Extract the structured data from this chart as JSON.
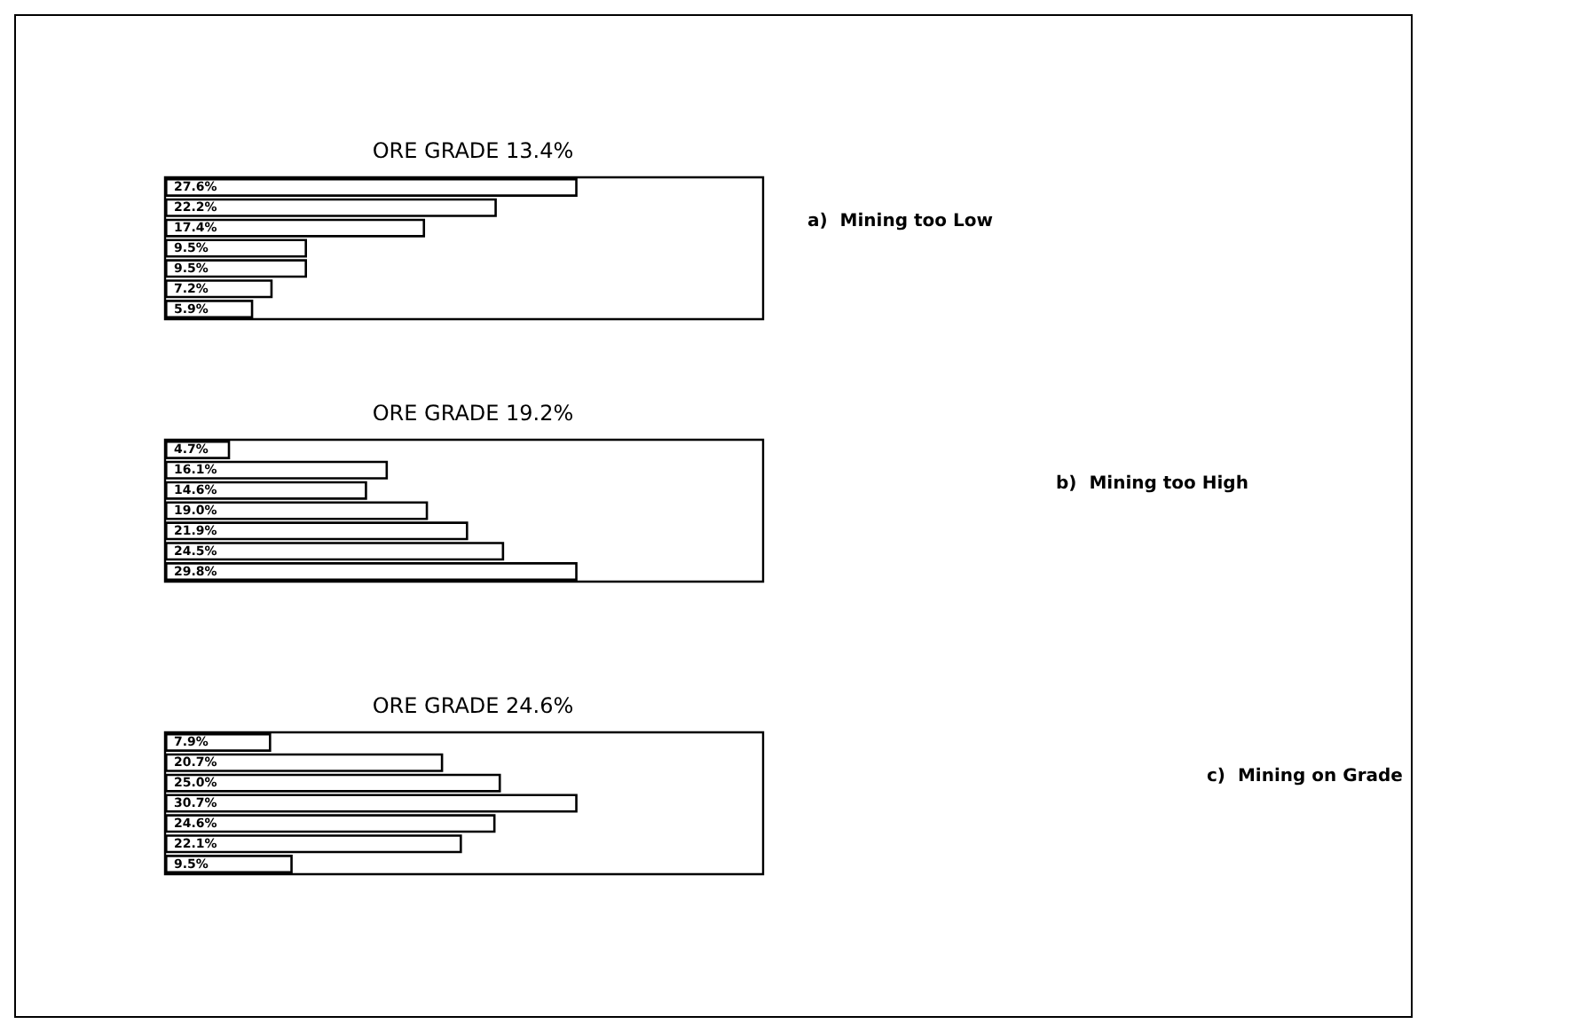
{
  "chart_data": [
    {
      "type": "bar",
      "orientation": "horizontal",
      "title": "ORE GRADE 13.4%",
      "annotations": [
        "a)  Mining too Low"
      ],
      "categories": [
        null,
        null,
        null,
        null,
        null,
        null,
        null
      ],
      "values": [
        27.6,
        22.2,
        17.4,
        9.5,
        9.5,
        7.2,
        5.9
      ],
      "value_labels": [
        "27.6%",
        "22.2%",
        "17.4%",
        "9.5%",
        "9.5%",
        "7.2%",
        "5.9%"
      ],
      "color": "#ffffff",
      "tick_labels": false
    },
    {
      "type": "bar",
      "orientation": "horizontal",
      "title": "ORE GRADE 19.2%",
      "annotations": [
        "b)  Mining too High"
      ],
      "categories": [
        null,
        null,
        null,
        null,
        null,
        null,
        null
      ],
      "values": [
        4.7,
        16.1,
        14.6,
        19.0,
        21.9,
        24.5,
        29.8
      ],
      "value_labels": [
        "4.7%",
        "16.1%",
        "14.6%",
        "19.0%",
        "21.9%",
        "24.5%",
        "29.8%"
      ],
      "color": "#ffffff",
      "tick_labels": false
    },
    {
      "type": "bar",
      "orientation": "horizontal",
      "title": "ORE GRADE 24.6%",
      "annotations": [
        "c)  Mining on Grade"
      ],
      "categories": [
        null,
        null,
        null,
        null,
        null,
        null,
        null
      ],
      "values": [
        7.9,
        20.7,
        25.0,
        30.7,
        24.6,
        22.1,
        9.5
      ],
      "value_labels": [
        "7.9%",
        "20.7%",
        "25.0%",
        "30.7%",
        "24.6%",
        "22.1%",
        "9.5%"
      ],
      "color": "#ffffff",
      "tick_labels": false
    }
  ]
}
